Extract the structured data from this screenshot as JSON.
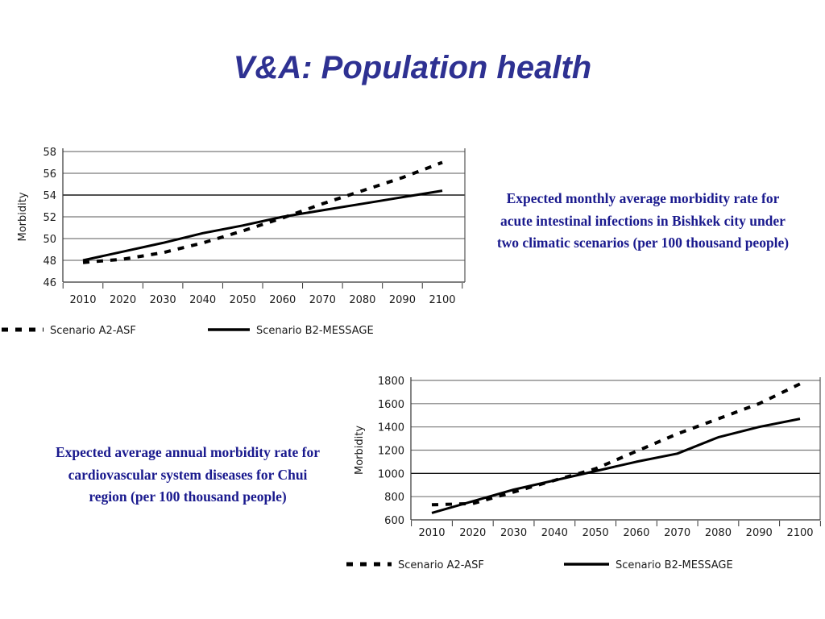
{
  "slide": {
    "title": "V&A: Population health",
    "caption_1": "Expected monthly average morbidity rate for acute intestinal infections in Bishkek city under two climatic scenarios (per 100 thousand people)",
    "caption_2": "Expected average annual morbidity rate for cardiovascular system diseases for Chui region (per 100 thousand people)"
  },
  "chart_data": [
    {
      "type": "line",
      "title": "",
      "xlabel": "",
      "ylabel": "Morbidity",
      "categories": [
        "2010",
        "2020",
        "2030",
        "2040",
        "2050",
        "2060",
        "2070",
        "2080",
        "2090",
        "2100"
      ],
      "x": [
        2010,
        2020,
        2030,
        2040,
        2050,
        2060,
        2070,
        2080,
        2090,
        2100
      ],
      "ylim": [
        46,
        58
      ],
      "yticks": [
        46,
        48,
        50,
        52,
        54,
        56,
        58
      ],
      "grid": true,
      "legend_position": "bottom",
      "series": [
        {
          "name": "Scenario A2-ASF",
          "style": "dashed",
          "color": "#000000",
          "values": [
            47.8,
            48.1,
            48.7,
            49.6,
            50.7,
            51.9,
            53.2,
            54.4,
            55.6,
            57.0
          ]
        },
        {
          "name": "Scenario B2-MESSAGE",
          "style": "solid",
          "color": "#000000",
          "values": [
            48.0,
            48.8,
            49.6,
            50.5,
            51.2,
            52.0,
            52.6,
            53.2,
            53.8,
            54.4
          ]
        }
      ]
    },
    {
      "type": "line",
      "title": "",
      "xlabel": "",
      "ylabel": "Morbidity",
      "categories": [
        "2010",
        "2020",
        "2030",
        "2040",
        "2050",
        "2060",
        "2070",
        "2080",
        "2090",
        "2100"
      ],
      "x": [
        2010,
        2020,
        2030,
        2040,
        2050,
        2060,
        2070,
        2080,
        2090,
        2100
      ],
      "ylim": [
        600,
        1800
      ],
      "yticks": [
        600,
        800,
        1000,
        1200,
        1400,
        1600,
        1800
      ],
      "grid": true,
      "legend_position": "bottom",
      "series": [
        {
          "name": "Scenario A2-ASF",
          "style": "dashed",
          "color": "#000000",
          "values": [
            730,
            740,
            840,
            940,
            1040,
            1190,
            1340,
            1470,
            1600,
            1770
          ]
        },
        {
          "name": "Scenario B2-MESSAGE",
          "style": "solid",
          "color": "#000000",
          "values": [
            660,
            760,
            860,
            940,
            1020,
            1100,
            1170,
            1310,
            1400,
            1470
          ]
        }
      ]
    }
  ]
}
